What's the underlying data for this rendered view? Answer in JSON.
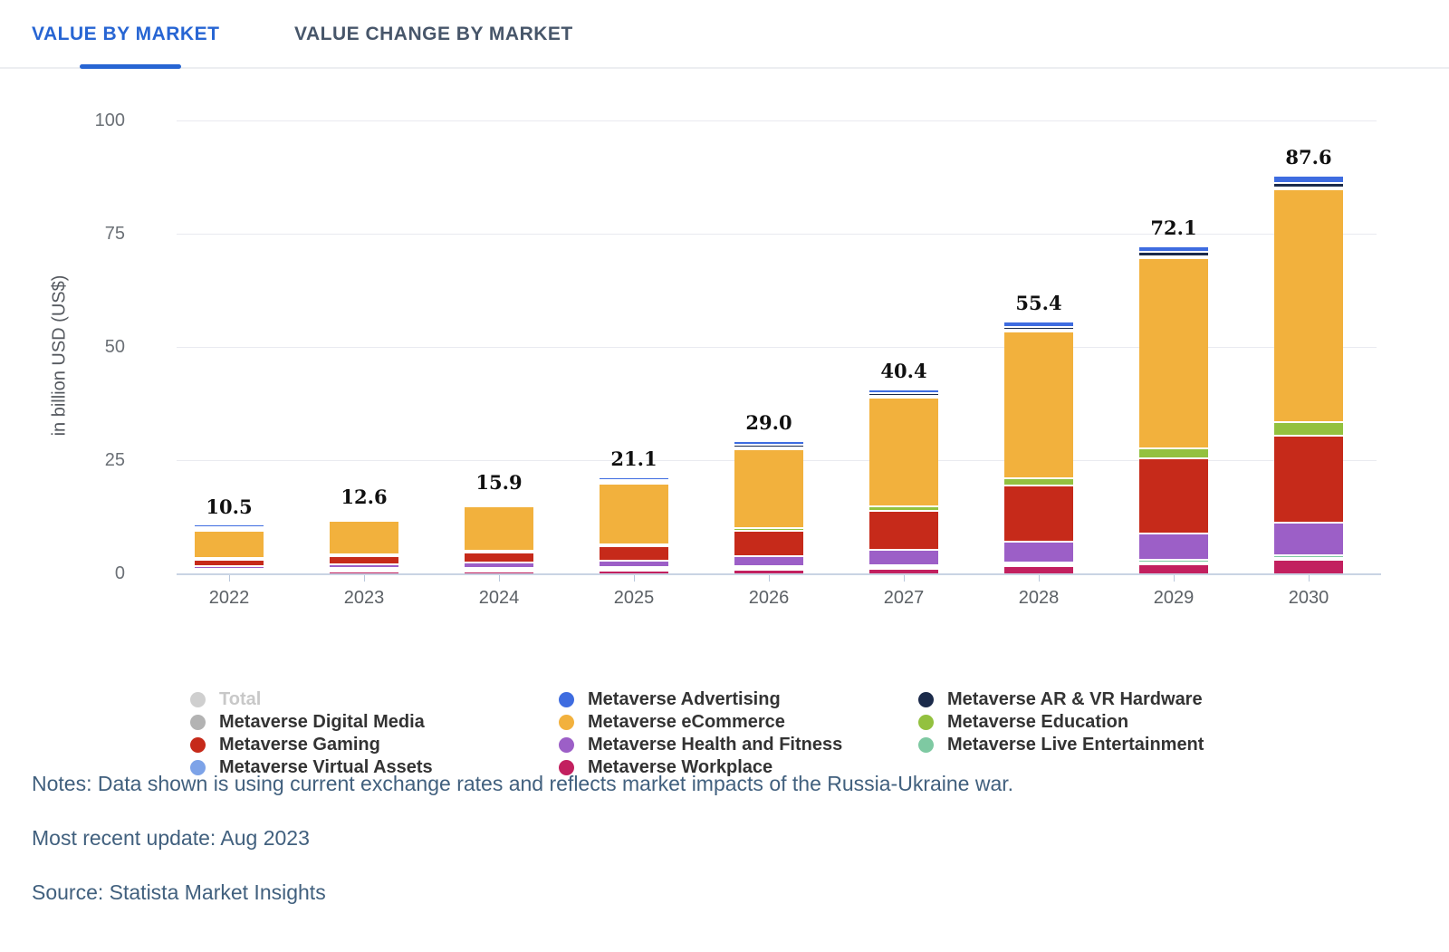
{
  "tabs": [
    {
      "label": "VALUE BY MARKET",
      "active": true
    },
    {
      "label": "VALUE CHANGE BY MARKET",
      "active": false
    }
  ],
  "chart_data": {
    "type": "bar",
    "subtype": "stacked",
    "ylabel": "in billion USD (US$)",
    "ylim": [
      0,
      100
    ],
    "y_ticks": [
      0,
      25,
      50,
      75,
      100
    ],
    "grid": true,
    "categories": [
      "2022",
      "2023",
      "2024",
      "2025",
      "2026",
      "2027",
      "2028",
      "2029",
      "2030"
    ],
    "totals": [
      10.5,
      12.6,
      15.9,
      21.1,
      29.0,
      40.4,
      55.4,
      72.1,
      87.6
    ],
    "total_labels": [
      "10.5",
      "12.6",
      "15.9",
      "21.1",
      "29.0",
      "40.4",
      "55.4",
      "72.1",
      "87.6"
    ],
    "series": [
      {
        "name": "Metaverse Workplace",
        "color": "#c2205f",
        "values": [
          0.5,
          0.6,
          0.7,
          0.8,
          1.0,
          1.3,
          1.8,
          2.3,
          3.2
        ]
      },
      {
        "name": "Metaverse Virtual Assets",
        "color": "#7da3e8",
        "values": [
          0.1,
          0.1,
          0.1,
          0.2,
          0.2,
          0.2,
          0.3,
          0.3,
          0.4
        ]
      },
      {
        "name": "Metaverse Live Entertainment",
        "color": "#7ec9a2",
        "values": [
          0.1,
          0.1,
          0.2,
          0.2,
          0.3,
          0.3,
          0.4,
          0.5,
          0.6
        ]
      },
      {
        "name": "Metaverse Health and Fitness",
        "color": "#9c5fc7",
        "values": [
          0.6,
          0.9,
          1.2,
          1.5,
          2.3,
          3.4,
          4.7,
          5.8,
          7.3
        ]
      },
      {
        "name": "Metaverse Gaming",
        "color": "#c62a1a",
        "values": [
          1.5,
          1.9,
          2.4,
          3.3,
          5.6,
          8.7,
          12.3,
          16.6,
          19.2
        ]
      },
      {
        "name": "Metaverse Education",
        "color": "#93c13f",
        "values": [
          0.1,
          0.2,
          0.3,
          0.4,
          0.6,
          0.9,
          1.7,
          2.2,
          3.0
        ]
      },
      {
        "name": "Metaverse eCommerce",
        "color": "#f2b13d",
        "values": [
          7.2,
          8.3,
          10.3,
          13.8,
          17.8,
          24.2,
          32.5,
          42.2,
          51.4
        ]
      },
      {
        "name": "Metaverse Digital Media",
        "color": "#b3b3b3",
        "values": [
          0.1,
          0.1,
          0.1,
          0.2,
          0.2,
          0.3,
          0.3,
          0.4,
          0.4
        ]
      },
      {
        "name": "Metaverse AR & VR Hardware",
        "color": "#1b2a4a",
        "values": [
          0.2,
          0.3,
          0.4,
          0.4,
          0.5,
          0.6,
          0.7,
          0.9,
          1.0
        ]
      },
      {
        "name": "Metaverse Advertising",
        "color": "#3e6ce0",
        "values": [
          0.1,
          0.1,
          0.2,
          0.3,
          0.5,
          0.5,
          0.7,
          0.9,
          1.1
        ]
      }
    ],
    "legend_position": "bottom"
  },
  "legend": {
    "columns": [
      [
        {
          "label": "Total",
          "color": "#cfcfcf",
          "muted": true
        },
        {
          "label": "Metaverse Digital Media",
          "color": "#b3b3b3",
          "muted": false
        },
        {
          "label": "Metaverse Gaming",
          "color": "#c62a1a",
          "muted": false
        },
        {
          "label": "Metaverse Virtual Assets",
          "color": "#7da3e8",
          "muted": false
        }
      ],
      [
        {
          "label": "Metaverse Advertising",
          "color": "#3e6ce0",
          "muted": false
        },
        {
          "label": "Metaverse eCommerce",
          "color": "#f2b13d",
          "muted": false
        },
        {
          "label": "Metaverse Health and Fitness",
          "color": "#9c5fc7",
          "muted": false
        },
        {
          "label": "Metaverse Workplace",
          "color": "#c2205f",
          "muted": false
        }
      ],
      [
        {
          "label": "Metaverse AR & VR Hardware",
          "color": "#1b2a4a",
          "muted": false
        },
        {
          "label": "Metaverse Education",
          "color": "#93c13f",
          "muted": false
        },
        {
          "label": "Metaverse Live Entertainment",
          "color": "#7ec9a2",
          "muted": false
        }
      ]
    ]
  },
  "footer": {
    "notes": "Notes: Data shown is using current exchange rates and reflects market impacts of the Russia-Ukraine war.",
    "update": "Most recent update: Aug 2023",
    "source": "Source: Statista Market Insights"
  }
}
